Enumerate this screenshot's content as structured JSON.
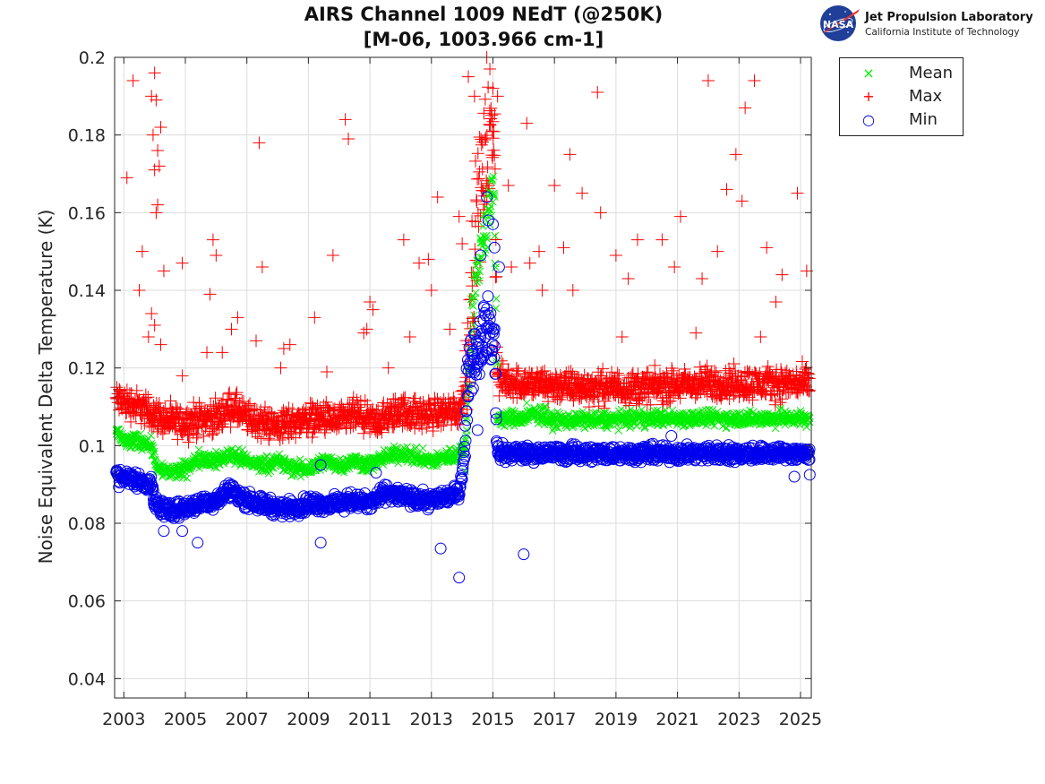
{
  "header": {
    "title_line1": "AIRS Channel 1009 NEdT (@250K)",
    "title_line2": "[M-06, 1003.966 cm-1]",
    "logo_name": "Jet Propulsion Laboratory",
    "logo_sub": "California Institute of Technology",
    "logo_badge": "NASA",
    "logo_icon": "nasa-meatball-icon"
  },
  "chart_data": {
    "type": "scatter",
    "title": "AIRS Channel 1009 NEdT (@250K) [M-06, 1003.966 cm-1]",
    "xlabel": "",
    "ylabel": "Noise Equivalent Delta Temperature (K)",
    "xlim": [
      2002.7,
      2025.35
    ],
    "ylim": [
      0.035,
      0.2
    ],
    "xticks": [
      2003,
      2005,
      2007,
      2009,
      2011,
      2013,
      2015,
      2017,
      2019,
      2021,
      2023,
      2025
    ],
    "yticks": [
      0.04,
      0.06,
      0.08,
      0.1,
      0.12,
      0.14,
      0.16,
      0.18,
      0.2
    ],
    "ytick_labels": [
      "0.04",
      "0.06",
      "0.08",
      "0.1",
      "0.12",
      "0.14",
      "0.16",
      "0.18",
      "0.2"
    ],
    "grid": true,
    "legend_position": "outside-top-right",
    "series": [
      {
        "name": "Mean",
        "marker": "x",
        "color": "#00ee00",
        "baseline": [
          [
            2002.75,
            0.104
          ],
          [
            2003.0,
            0.101
          ],
          [
            2003.7,
            0.101
          ],
          [
            2003.9,
            0.1
          ],
          [
            2004.1,
            0.094
          ],
          [
            2004.6,
            0.093
          ],
          [
            2005.0,
            0.094
          ],
          [
            2005.5,
            0.097
          ],
          [
            2006.0,
            0.096
          ],
          [
            2006.5,
            0.098
          ],
          [
            2006.7,
            0.097
          ],
          [
            2007.0,
            0.096
          ],
          [
            2007.5,
            0.095
          ],
          [
            2008.0,
            0.096
          ],
          [
            2008.5,
            0.094
          ],
          [
            2009.0,
            0.094
          ],
          [
            2009.5,
            0.096
          ],
          [
            2010.0,
            0.095
          ],
          [
            2010.5,
            0.096
          ],
          [
            2011.0,
            0.095
          ],
          [
            2011.5,
            0.097
          ],
          [
            2012.0,
            0.098
          ],
          [
            2012.5,
            0.097
          ],
          [
            2013.0,
            0.096
          ],
          [
            2013.5,
            0.097
          ],
          [
            2013.9,
            0.098
          ],
          [
            2014.1,
            0.1
          ],
          [
            2014.3,
            0.13
          ],
          [
            2014.5,
            0.145
          ],
          [
            2014.7,
            0.155
          ],
          [
            2014.9,
            0.16
          ],
          [
            2015.05,
            0.165
          ],
          [
            2015.15,
            0.107
          ],
          [
            2016.0,
            0.107
          ],
          [
            2016.3,
            0.108
          ],
          [
            2016.7,
            0.108
          ],
          [
            2016.8,
            0.1065
          ],
          [
            2018.0,
            0.1065
          ],
          [
            2020.0,
            0.107
          ],
          [
            2022.0,
            0.107
          ],
          [
            2024.0,
            0.107
          ],
          [
            2025.3,
            0.107
          ]
        ],
        "spread": 0.003,
        "outliers": [
          [
            2016.1,
            0.111
          ]
        ]
      },
      {
        "name": "Max",
        "marker": "+",
        "color": "#ff0000",
        "baseline": [
          [
            2002.75,
            0.112
          ],
          [
            2003.5,
            0.11
          ],
          [
            2004.0,
            0.108
          ],
          [
            2004.5,
            0.106
          ],
          [
            2005.0,
            0.106
          ],
          [
            2005.5,
            0.107
          ],
          [
            2006.0,
            0.107
          ],
          [
            2006.5,
            0.11
          ],
          [
            2007.0,
            0.107
          ],
          [
            2007.5,
            0.106
          ],
          [
            2008.0,
            0.105
          ],
          [
            2008.5,
            0.106
          ],
          [
            2009.0,
            0.107
          ],
          [
            2009.5,
            0.107
          ],
          [
            2010.0,
            0.106
          ],
          [
            2010.5,
            0.108
          ],
          [
            2011.0,
            0.106
          ],
          [
            2011.5,
            0.107
          ],
          [
            2012.0,
            0.109
          ],
          [
            2012.5,
            0.108
          ],
          [
            2013.0,
            0.108
          ],
          [
            2013.5,
            0.109
          ],
          [
            2013.9,
            0.109
          ],
          [
            2014.1,
            0.115
          ],
          [
            2014.3,
            0.14
          ],
          [
            2014.5,
            0.16
          ],
          [
            2014.7,
            0.172
          ],
          [
            2014.9,
            0.178
          ],
          [
            2015.05,
            0.182
          ],
          [
            2015.15,
            0.117
          ],
          [
            2016.0,
            0.116
          ],
          [
            2018.0,
            0.115
          ],
          [
            2020.0,
            0.115
          ],
          [
            2022.0,
            0.116
          ],
          [
            2024.0,
            0.116
          ],
          [
            2025.3,
            0.116
          ]
        ],
        "spread": 0.006,
        "outliers": [
          [
            2003.1,
            0.169
          ],
          [
            2003.3,
            0.194
          ],
          [
            2003.5,
            0.14
          ],
          [
            2003.6,
            0.15
          ],
          [
            2003.8,
            0.128
          ],
          [
            2003.9,
            0.19
          ],
          [
            2004.0,
            0.196
          ],
          [
            2003.95,
            0.18
          ],
          [
            2004.0,
            0.171
          ],
          [
            2004.05,
            0.189
          ],
          [
            2004.1,
            0.176
          ],
          [
            2004.15,
            0.172
          ],
          [
            2004.1,
            0.162
          ],
          [
            2004.05,
            0.16
          ],
          [
            2004.2,
            0.182
          ],
          [
            2004.3,
            0.145
          ],
          [
            2003.9,
            0.134
          ],
          [
            2004.0,
            0.131
          ],
          [
            2004.2,
            0.126
          ],
          [
            2004.9,
            0.147
          ],
          [
            2005.8,
            0.139
          ],
          [
            2005.9,
            0.153
          ],
          [
            2006.0,
            0.149
          ],
          [
            2005.7,
            0.124
          ],
          [
            2006.2,
            0.124
          ],
          [
            2006.5,
            0.13
          ],
          [
            2006.7,
            0.133
          ],
          [
            2007.4,
            0.178
          ],
          [
            2007.5,
            0.146
          ],
          [
            2007.3,
            0.127
          ],
          [
            2008.2,
            0.125
          ],
          [
            2008.4,
            0.126
          ],
          [
            2009.2,
            0.133
          ],
          [
            2009.8,
            0.149
          ],
          [
            2010.2,
            0.184
          ],
          [
            2010.3,
            0.179
          ],
          [
            2010.8,
            0.129
          ],
          [
            2010.9,
            0.13
          ],
          [
            2011.0,
            0.137
          ],
          [
            2011.1,
            0.135
          ],
          [
            2012.1,
            0.153
          ],
          [
            2012.3,
            0.128
          ],
          [
            2012.6,
            0.147
          ],
          [
            2012.9,
            0.148
          ],
          [
            2013.0,
            0.14
          ],
          [
            2013.2,
            0.164
          ],
          [
            2013.6,
            0.13
          ],
          [
            2013.9,
            0.159
          ],
          [
            2014.0,
            0.152
          ],
          [
            2014.2,
            0.195
          ],
          [
            2014.4,
            0.19
          ],
          [
            2014.8,
            0.2
          ],
          [
            2014.9,
            0.197
          ],
          [
            2015.0,
            0.192
          ],
          [
            2015.15,
            0.19
          ],
          [
            2015.5,
            0.167
          ],
          [
            2015.6,
            0.146
          ],
          [
            2016.1,
            0.183
          ],
          [
            2016.2,
            0.147
          ],
          [
            2016.5,
            0.15
          ],
          [
            2016.6,
            0.14
          ],
          [
            2017.0,
            0.167
          ],
          [
            2017.3,
            0.151
          ],
          [
            2017.5,
            0.175
          ],
          [
            2017.6,
            0.14
          ],
          [
            2017.9,
            0.165
          ],
          [
            2018.4,
            0.191
          ],
          [
            2018.5,
            0.16
          ],
          [
            2019.0,
            0.149
          ],
          [
            2019.4,
            0.143
          ],
          [
            2019.7,
            0.153
          ],
          [
            2020.5,
            0.153
          ],
          [
            2020.9,
            0.146
          ],
          [
            2021.1,
            0.159
          ],
          [
            2021.8,
            0.143
          ],
          [
            2022.0,
            0.194
          ],
          [
            2022.3,
            0.15
          ],
          [
            2022.6,
            0.166
          ],
          [
            2022.9,
            0.175
          ],
          [
            2023.1,
            0.163
          ],
          [
            2023.2,
            0.187
          ],
          [
            2023.5,
            0.194
          ],
          [
            2023.9,
            0.151
          ],
          [
            2024.2,
            0.137
          ],
          [
            2024.4,
            0.144
          ],
          [
            2024.9,
            0.165
          ],
          [
            2025.2,
            0.145
          ],
          [
            2004.9,
            0.118
          ],
          [
            2008.1,
            0.12
          ],
          [
            2009.6,
            0.119
          ],
          [
            2011.6,
            0.12
          ],
          [
            2019.2,
            0.128
          ],
          [
            2021.6,
            0.129
          ],
          [
            2023.7,
            0.128
          ]
        ]
      },
      {
        "name": "Min",
        "marker": "o",
        "color": "#0000ee",
        "baseline": [
          [
            2002.75,
            0.092
          ],
          [
            2003.0,
            0.092
          ],
          [
            2003.5,
            0.091
          ],
          [
            2003.9,
            0.09
          ],
          [
            2004.0,
            0.085
          ],
          [
            2004.5,
            0.083
          ],
          [
            2005.0,
            0.084
          ],
          [
            2005.5,
            0.085
          ],
          [
            2006.0,
            0.086
          ],
          [
            2006.5,
            0.089
          ],
          [
            2006.7,
            0.087
          ],
          [
            2007.0,
            0.086
          ],
          [
            2007.5,
            0.085
          ],
          [
            2008.0,
            0.084
          ],
          [
            2008.5,
            0.084
          ],
          [
            2009.0,
            0.085
          ],
          [
            2009.5,
            0.085
          ],
          [
            2010.0,
            0.085
          ],
          [
            2010.5,
            0.086
          ],
          [
            2011.0,
            0.085
          ],
          [
            2011.5,
            0.088
          ],
          [
            2012.0,
            0.087
          ],
          [
            2012.5,
            0.086
          ],
          [
            2013.0,
            0.086
          ],
          [
            2013.5,
            0.087
          ],
          [
            2013.9,
            0.088
          ],
          [
            2014.1,
            0.1
          ],
          [
            2014.2,
            0.12
          ],
          [
            2014.5,
            0.125
          ],
          [
            2014.7,
            0.13
          ],
          [
            2014.9,
            0.13
          ],
          [
            2015.05,
            0.125
          ],
          [
            2015.15,
            0.098
          ],
          [
            2016.0,
            0.098
          ],
          [
            2018.0,
            0.098
          ],
          [
            2020.0,
            0.098
          ],
          [
            2022.0,
            0.098
          ],
          [
            2024.0,
            0.098
          ],
          [
            2025.3,
            0.098
          ]
        ],
        "spread": 0.003,
        "outliers": [
          [
            2004.3,
            0.078
          ],
          [
            2004.9,
            0.078
          ],
          [
            2005.4,
            0.075
          ],
          [
            2009.4,
            0.075
          ],
          [
            2009.4,
            0.095
          ],
          [
            2011.2,
            0.093
          ],
          [
            2013.3,
            0.0735
          ],
          [
            2013.9,
            0.066
          ],
          [
            2014.5,
            0.104
          ],
          [
            2014.6,
            0.149
          ],
          [
            2014.8,
            0.164
          ],
          [
            2014.85,
            0.158
          ],
          [
            2015.0,
            0.157
          ],
          [
            2015.05,
            0.151
          ],
          [
            2015.2,
            0.146
          ],
          [
            2016.0,
            0.072
          ],
          [
            2020.8,
            0.1025
          ],
          [
            2024.8,
            0.092
          ],
          [
            2025.3,
            0.0925
          ]
        ]
      }
    ]
  }
}
